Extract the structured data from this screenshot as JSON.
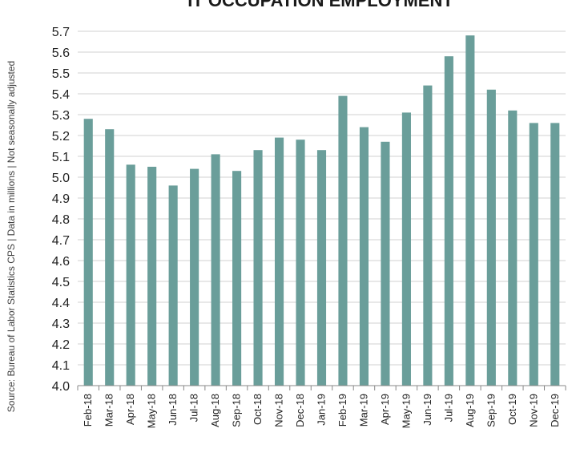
{
  "chart_data": {
    "type": "bar",
    "title": "IT OCCUPATION EMPLOYMENT",
    "xlabel": "",
    "ylabel": "",
    "side_note": "Source: Bureau of Labor Statistics CPS | Data in millions | Not seasonally adjusted",
    "categories": [
      "Feb-18",
      "Mar-18",
      "Apr-18",
      "May-18",
      "Jun-18",
      "Jul-18",
      "Aug-18",
      "Sep-18",
      "Oct-18",
      "Nov-18",
      "Dec-18",
      "Jan-19",
      "Feb-19",
      "Mar-19",
      "Apr-19",
      "May-19",
      "Jun-19",
      "Jul-19",
      "Aug-19",
      "Sep-19",
      "Oct-19",
      "Nov-19",
      "Dec-19"
    ],
    "values": [
      5.28,
      5.23,
      5.06,
      5.05,
      4.96,
      5.04,
      5.11,
      5.03,
      5.13,
      5.19,
      5.18,
      5.13,
      5.39,
      5.24,
      5.17,
      5.31,
      5.44,
      5.58,
      5.68,
      5.42,
      5.32,
      5.26,
      5.26
    ],
    "ylim": [
      4.0,
      5.7
    ],
    "yticks": [
      "4.0",
      "4.1",
      "4.2",
      "4.3",
      "4.4",
      "4.5",
      "4.6",
      "4.7",
      "4.8",
      "4.9",
      "5.0",
      "5.1",
      "5.2",
      "5.3",
      "5.4",
      "5.5",
      "5.6",
      "5.7"
    ],
    "grid": true,
    "legend": "none",
    "colors": {
      "bar": "#6a9e9a",
      "grid": "#d0d0d0",
      "axis": "#888888"
    }
  }
}
